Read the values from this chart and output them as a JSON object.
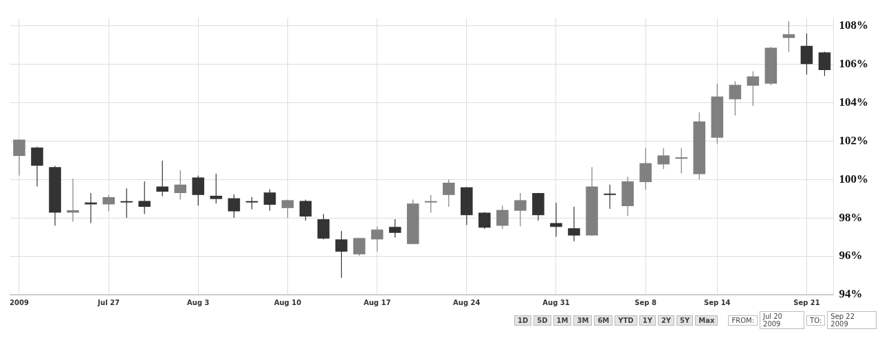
{
  "chart_data": {
    "type": "candlestick",
    "categories": [
      "2009",
      null,
      null,
      null,
      null,
      "Jul 27",
      null,
      null,
      null,
      null,
      "Aug 3",
      null,
      null,
      null,
      null,
      "Aug 10",
      null,
      null,
      null,
      null,
      "Aug 17",
      null,
      null,
      null,
      null,
      "Aug 24",
      null,
      null,
      null,
      null,
      "Aug 31",
      null,
      null,
      null,
      null,
      "Sep 8",
      null,
      null,
      null,
      "Sep 14",
      null,
      null,
      null,
      null,
      "Sep 21",
      null
    ],
    "ohlc": [
      [
        101.22,
        102.1,
        100.2,
        102.07
      ],
      [
        101.66,
        101.7,
        99.63,
        100.71
      ],
      [
        100.64,
        100.7,
        97.59,
        98.27
      ],
      [
        98.27,
        100.03,
        97.8,
        98.4
      ],
      [
        98.8,
        99.29,
        97.73,
        98.7
      ],
      [
        98.7,
        99.19,
        98.34,
        99.08
      ],
      [
        98.85,
        99.53,
        98.0,
        98.8
      ],
      [
        98.88,
        99.9,
        98.2,
        98.58
      ],
      [
        99.63,
        100.98,
        99.12,
        99.36
      ],
      [
        99.29,
        100.47,
        98.95,
        99.73
      ],
      [
        100.1,
        100.2,
        98.64,
        99.19
      ],
      [
        99.15,
        100.3,
        98.75,
        98.98
      ],
      [
        99.02,
        99.22,
        98.0,
        98.34
      ],
      [
        98.85,
        99.08,
        98.44,
        98.8
      ],
      [
        99.32,
        99.49,
        98.37,
        98.68
      ],
      [
        98.51,
        98.95,
        98.0,
        98.92
      ],
      [
        98.88,
        98.95,
        97.86,
        98.07
      ],
      [
        97.93,
        98.2,
        96.88,
        96.92
      ],
      [
        96.88,
        97.32,
        94.88,
        96.24
      ],
      [
        96.1,
        96.95,
        96.03,
        96.95
      ],
      [
        96.88,
        97.56,
        96.24,
        97.39
      ],
      [
        97.53,
        97.93,
        96.98,
        97.22
      ],
      [
        96.64,
        98.95,
        96.64,
        98.75
      ],
      [
        98.8,
        99.19,
        98.27,
        98.85
      ],
      [
        99.19,
        100.0,
        98.58,
        99.83
      ],
      [
        99.59,
        99.6,
        97.63,
        98.14
      ],
      [
        98.27,
        98.3,
        97.42,
        97.49
      ],
      [
        97.59,
        98.64,
        97.42,
        98.41
      ],
      [
        98.37,
        99.29,
        97.56,
        98.92
      ],
      [
        99.29,
        99.3,
        97.86,
        98.14
      ],
      [
        97.73,
        98.78,
        97.02,
        97.53
      ],
      [
        97.46,
        98.58,
        96.78,
        97.08
      ],
      [
        97.08,
        100.64,
        97.08,
        99.63
      ],
      [
        99.24,
        99.73,
        98.47,
        99.19
      ],
      [
        98.61,
        100.14,
        98.1,
        99.9
      ],
      [
        99.86,
        101.63,
        99.46,
        100.85
      ],
      [
        100.78,
        101.63,
        100.54,
        101.25
      ],
      [
        101.08,
        101.63,
        100.31,
        101.15
      ],
      [
        100.27,
        103.49,
        100.0,
        103.02
      ],
      [
        102.17,
        104.98,
        101.86,
        104.31
      ],
      [
        104.17,
        105.12,
        103.32,
        104.92
      ],
      [
        104.88,
        105.63,
        103.83,
        105.36
      ],
      [
        104.98,
        106.9,
        104.9,
        106.85
      ],
      [
        107.36,
        108.24,
        106.64,
        107.56
      ],
      [
        106.95,
        107.59,
        105.46,
        106.0
      ],
      [
        106.61,
        106.65,
        105.39,
        105.69
      ]
    ],
    "colors": [
      "#808080",
      "#333333",
      "#333333",
      "#808080",
      "#333333",
      "#808080",
      "#333333",
      "#333333",
      "#333333",
      "#808080",
      "#333333",
      "#333333",
      "#333333",
      "#333333",
      "#333333",
      "#808080",
      "#333333",
      "#333333",
      "#333333",
      "#808080",
      "#808080",
      "#333333",
      "#808080",
      "#808080",
      "#808080",
      "#333333",
      "#333333",
      "#808080",
      "#808080",
      "#333333",
      "#333333",
      "#333333",
      "#808080",
      "#333333",
      "#808080",
      "#808080",
      "#808080",
      "#808080",
      "#808080",
      "#808080",
      "#808080",
      "#808080",
      "#808080",
      "#808080",
      "#333333",
      "#333333"
    ],
    "ylim": [
      94,
      108.4
    ],
    "yticks": [
      {
        "value": 94,
        "label": "94%"
      },
      {
        "value": 96,
        "label": "96%"
      },
      {
        "value": 98,
        "label": "98%"
      },
      {
        "value": 100,
        "label": "100%"
      },
      {
        "value": 102,
        "label": "102%"
      },
      {
        "value": 104,
        "label": "104%"
      },
      {
        "value": 106,
        "label": "106%"
      },
      {
        "value": 108,
        "label": "108%"
      }
    ],
    "grid": true,
    "legend": false,
    "annotations": [
      "1D",
      "5D",
      "1M",
      "3M",
      "6M",
      "YTD",
      "1Y",
      "2Y",
      "5Y",
      "Max",
      "FROM:",
      "Jul 20 2009",
      "TO:",
      "Sep 22 2009"
    ]
  }
}
